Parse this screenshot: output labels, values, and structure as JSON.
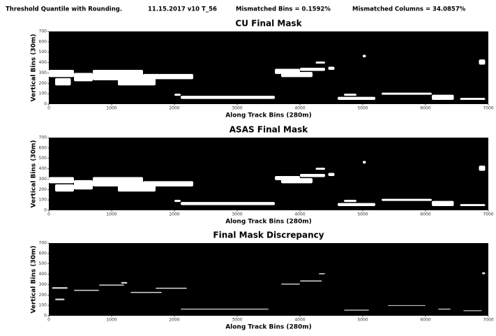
{
  "header": {
    "parts": [
      "Threshold Quantile with Rounding.",
      "11.15.2017 v10 T_56",
      "Mismatched Bins = 0.1592%",
      "Mismatched Columns = 34.0857%"
    ]
  },
  "chart_data": [
    {
      "type": "mask",
      "title": "CU Final Mask",
      "x_label": "Along Track Bins (280m)",
      "y_label": "Vertical Bins (30m)",
      "background": "#000000",
      "color": "#ffffff",
      "xlim": [
        0,
        7000
      ],
      "ylim": [
        0,
        700
      ],
      "xticks": [
        0,
        1000,
        2000,
        3000,
        4000,
        5000,
        6000,
        7000
      ],
      "yticks": [
        0,
        100,
        200,
        300,
        400,
        500,
        600,
        700
      ],
      "regions": [
        {
          "x": [
            0,
            400
          ],
          "y": [
            260,
            330
          ]
        },
        {
          "x": [
            100,
            350
          ],
          "y": [
            180,
            250
          ]
        },
        {
          "x": [
            400,
            700
          ],
          "y": [
            220,
            300
          ]
        },
        {
          "x": [
            700,
            1500
          ],
          "y": [
            230,
            330
          ]
        },
        {
          "x": [
            1100,
            1700
          ],
          "y": [
            180,
            260
          ]
        },
        {
          "x": [
            1500,
            2300
          ],
          "y": [
            240,
            290
          ]
        },
        {
          "x": [
            2000,
            2100
          ],
          "y": [
            80,
            100
          ]
        },
        {
          "x": [
            2100,
            3600
          ],
          "y": [
            50,
            80
          ]
        },
        {
          "x": [
            3600,
            4000
          ],
          "y": [
            290,
            340
          ]
        },
        {
          "x": [
            3700,
            4200
          ],
          "y": [
            260,
            310
          ]
        },
        {
          "x": [
            4000,
            4400
          ],
          "y": [
            320,
            350
          ]
        },
        {
          "x": [
            4250,
            4400
          ],
          "y": [
            390,
            410
          ]
        },
        {
          "x": [
            4450,
            4550
          ],
          "y": [
            330,
            360
          ]
        },
        {
          "x": [
            4600,
            5200
          ],
          "y": [
            40,
            70
          ]
        },
        {
          "x": [
            4700,
            4900
          ],
          "y": [
            80,
            100
          ]
        },
        {
          "x": [
            5000,
            5050
          ],
          "y": [
            450,
            475
          ]
        },
        {
          "x": [
            5300,
            6100
          ],
          "y": [
            90,
            110
          ]
        },
        {
          "x": [
            6100,
            6450
          ],
          "y": [
            40,
            90
          ]
        },
        {
          "x": [
            6550,
            6950
          ],
          "y": [
            40,
            60
          ]
        },
        {
          "x": [
            6850,
            6950
          ],
          "y": [
            380,
            430
          ]
        }
      ]
    },
    {
      "type": "mask",
      "title": "ASAS Final Mask",
      "x_label": "Along Track Bins (280m)",
      "y_label": "Vertical Bins (30m)",
      "background": "#000000",
      "color": "#ffffff",
      "xlim": [
        0,
        7000
      ],
      "ylim": [
        0,
        700
      ],
      "xticks": [
        0,
        1000,
        2000,
        3000,
        4000,
        5000,
        6000,
        7000
      ],
      "yticks": [
        0,
        100,
        200,
        300,
        400,
        500,
        600,
        700
      ],
      "regions": [
        {
          "x": [
            0,
            400
          ],
          "y": [
            260,
            320
          ]
        },
        {
          "x": [
            100,
            400
          ],
          "y": [
            180,
            250
          ]
        },
        {
          "x": [
            400,
            700
          ],
          "y": [
            200,
            290
          ]
        },
        {
          "x": [
            700,
            1500
          ],
          "y": [
            230,
            320
          ]
        },
        {
          "x": [
            1100,
            1700
          ],
          "y": [
            180,
            250
          ]
        },
        {
          "x": [
            1500,
            2300
          ],
          "y": [
            230,
            280
          ]
        },
        {
          "x": [
            2000,
            2100
          ],
          "y": [
            80,
            100
          ]
        },
        {
          "x": [
            2100,
            3600
          ],
          "y": [
            50,
            80
          ]
        },
        {
          "x": [
            3600,
            4000
          ],
          "y": [
            290,
            330
          ]
        },
        {
          "x": [
            3700,
            4200
          ],
          "y": [
            260,
            310
          ]
        },
        {
          "x": [
            4000,
            4400
          ],
          "y": [
            320,
            350
          ]
        },
        {
          "x": [
            4250,
            4400
          ],
          "y": [
            390,
            410
          ]
        },
        {
          "x": [
            4450,
            4550
          ],
          "y": [
            330,
            360
          ]
        },
        {
          "x": [
            4600,
            5200
          ],
          "y": [
            40,
            70
          ]
        },
        {
          "x": [
            4700,
            4900
          ],
          "y": [
            80,
            100
          ]
        },
        {
          "x": [
            5000,
            5050
          ],
          "y": [
            450,
            475
          ]
        },
        {
          "x": [
            5300,
            6100
          ],
          "y": [
            90,
            110
          ]
        },
        {
          "x": [
            6100,
            6450
          ],
          "y": [
            40,
            90
          ]
        },
        {
          "x": [
            6550,
            6950
          ],
          "y": [
            40,
            60
          ]
        },
        {
          "x": [
            6850,
            6950
          ],
          "y": [
            380,
            430
          ]
        }
      ]
    },
    {
      "type": "mask",
      "title": "Final Mask Discrepancy",
      "x_label": "Along Track Bins (280m)",
      "y_label": "Vertical Bins (30m)",
      "background": "#000000",
      "color": "#d9d9d9",
      "xlim": [
        0,
        7000
      ],
      "ylim": [
        0,
        700
      ],
      "xticks": [
        0,
        1000,
        2000,
        3000,
        4000,
        5000,
        6000,
        7000
      ],
      "yticks": [
        0,
        100,
        200,
        300,
        400,
        500,
        600,
        700
      ],
      "regions": [
        {
          "x": [
            50,
            300
          ],
          "y": [
            260,
            275
          ]
        },
        {
          "x": [
            100,
            250
          ],
          "y": [
            150,
            165
          ]
        },
        {
          "x": [
            400,
            800
          ],
          "y": [
            240,
            250
          ]
        },
        {
          "x": [
            800,
            1200
          ],
          "y": [
            290,
            300
          ]
        },
        {
          "x": [
            1150,
            1250
          ],
          "y": [
            310,
            325
          ]
        },
        {
          "x": [
            1300,
            1800
          ],
          "y": [
            220,
            230
          ]
        },
        {
          "x": [
            1700,
            2200
          ],
          "y": [
            260,
            270
          ]
        },
        {
          "x": [
            2100,
            3500
          ],
          "y": [
            60,
            68
          ]
        },
        {
          "x": [
            3700,
            4000
          ],
          "y": [
            300,
            310
          ]
        },
        {
          "x": [
            4000,
            4350
          ],
          "y": [
            330,
            340
          ]
        },
        {
          "x": [
            4300,
            4400
          ],
          "y": [
            400,
            410
          ]
        },
        {
          "x": [
            4700,
            5100
          ],
          "y": [
            50,
            58
          ]
        },
        {
          "x": [
            5400,
            6000
          ],
          "y": [
            95,
            102
          ]
        },
        {
          "x": [
            6200,
            6400
          ],
          "y": [
            60,
            68
          ]
        },
        {
          "x": [
            6600,
            6900
          ],
          "y": [
            45,
            52
          ]
        },
        {
          "x": [
            6900,
            6950
          ],
          "y": [
            400,
            420
          ]
        }
      ]
    }
  ]
}
